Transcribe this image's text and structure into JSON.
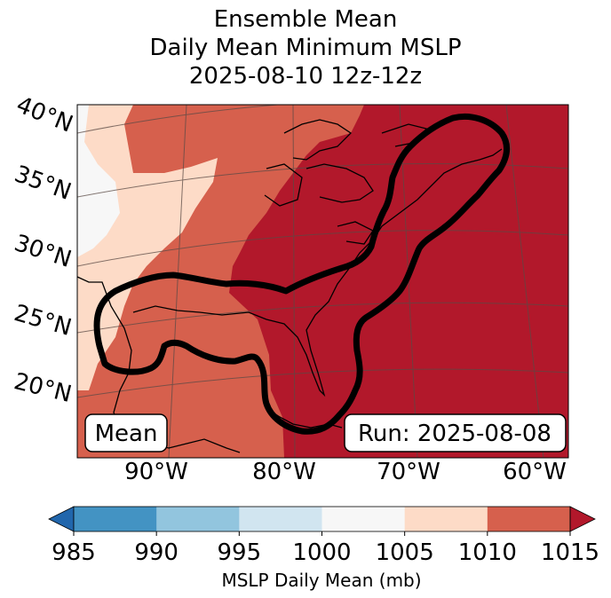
{
  "title": {
    "line1": "Ensemble Mean",
    "line2": "Daily Mean Minimum MSLP",
    "line3": "2025-08-10 12z-12z"
  },
  "map": {
    "lat_labels": [
      "40°N",
      "35°N",
      "30°N",
      "25°N",
      "20°N"
    ],
    "lon_labels": [
      "90°W",
      "80°W",
      "70°W",
      "60°W"
    ],
    "badge_left": "Mean",
    "badge_right": "Run: 2025-08-08",
    "contour_color": "#000000",
    "fill_levels": [
      {
        "range": "1000-1005",
        "color": "#f7f7f7"
      },
      {
        "range": "1005-1010",
        "color": "#fddbc7"
      },
      {
        "range": "1010-1015",
        "color": "#d6604d"
      },
      {
        "range": ">1015",
        "color": "#b2182b"
      }
    ]
  },
  "colorbar": {
    "ticks": [
      "985",
      "990",
      "995",
      "1000",
      "1005",
      "1010",
      "1015"
    ],
    "colors": [
      "#2166ac",
      "#4393c3",
      "#92c5de",
      "#d1e5f0",
      "#f7f7f7",
      "#fddbc7",
      "#d6604d",
      "#b2182b"
    ],
    "label": "MSLP Daily Mean (mb)"
  }
}
